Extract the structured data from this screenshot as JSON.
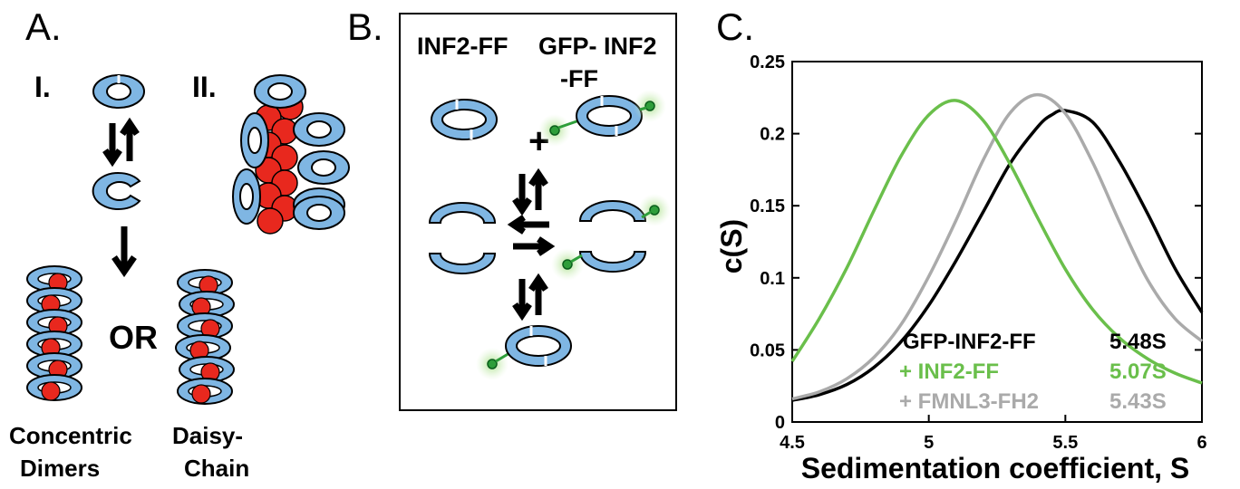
{
  "panels": {
    "a": {
      "letter": "A.",
      "roman_1": "I.",
      "roman_2": "II.",
      "or_text": "OR",
      "label_concentric": "Concentric Dimers",
      "label_concentric_line1": "Concentric",
      "label_concentric_line2": "Dimers",
      "label_daisy_line1": "Daisy-",
      "label_daisy_line2": "Chain"
    },
    "b": {
      "letter": "B.",
      "col1_title": "INF2-FF",
      "col2_title_line1": "GFP- INF2",
      "col2_title_line2": "-FF",
      "plus": "+"
    },
    "c": {
      "letter": "C."
    }
  },
  "colors": {
    "ring_blue": "#7fb6e3",
    "actin_red": "#e8281e",
    "gfp_green": "#2e9e3a",
    "green_curve": "#6abf4b",
    "gray_curve": "#aaaaaa",
    "black_curve": "#000000"
  },
  "chart_data": {
    "type": "line",
    "xlabel": "Sedimentation coefficient, S",
    "ylabel": "c(S)",
    "xlim": [
      4.5,
      6
    ],
    "ylim": [
      0,
      0.25
    ],
    "x_ticks": [
      "4.5",
      "5",
      "5.5",
      "6"
    ],
    "y_ticks": [
      "0",
      "0.05",
      "0.1",
      "0.15",
      "0.2",
      "0.25"
    ],
    "series": [
      {
        "name": "GFP-INF2-FF",
        "value_label": "5.48S",
        "color": "#000000",
        "x": [
          4.5,
          4.6,
          4.7,
          4.8,
          4.9,
          5.0,
          5.1,
          5.2,
          5.3,
          5.4,
          5.45,
          5.5,
          5.6,
          5.7,
          5.8,
          5.9,
          6.0
        ],
        "y": [
          0.015,
          0.019,
          0.026,
          0.038,
          0.056,
          0.081,
          0.112,
          0.146,
          0.18,
          0.205,
          0.213,
          0.216,
          0.208,
          0.18,
          0.145,
          0.107,
          0.076
        ]
      },
      {
        "name": "+ INF2-FF",
        "value_label": "5.07S",
        "color": "#6abf4b",
        "x": [
          4.5,
          4.6,
          4.7,
          4.8,
          4.9,
          5.0,
          5.1,
          5.2,
          5.3,
          5.4,
          5.5,
          5.6,
          5.7,
          5.8,
          5.9,
          6.0
        ],
        "y": [
          0.042,
          0.072,
          0.107,
          0.147,
          0.185,
          0.213,
          0.223,
          0.209,
          0.178,
          0.141,
          0.106,
          0.078,
          0.058,
          0.044,
          0.034,
          0.027
        ]
      },
      {
        "name": "+ FMNL3-FH2",
        "value_label": "5.43S",
        "color": "#aaaaaa",
        "x": [
          4.5,
          4.6,
          4.7,
          4.8,
          4.9,
          5.0,
          5.1,
          5.2,
          5.3,
          5.4,
          5.5,
          5.6,
          5.7,
          5.8,
          5.9,
          6.0
        ],
        "y": [
          0.016,
          0.021,
          0.03,
          0.045,
          0.068,
          0.101,
          0.14,
          0.182,
          0.215,
          0.227,
          0.214,
          0.18,
          0.138,
          0.099,
          0.072,
          0.056
        ]
      }
    ]
  }
}
